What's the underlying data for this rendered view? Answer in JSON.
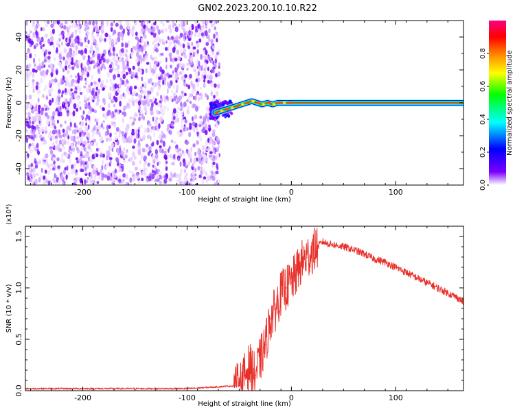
{
  "title": "GN02.2023.200.10.10.R22",
  "chart_data": [
    {
      "type": "heatmap",
      "xlabel": "Height of straight line (km)",
      "ylabel": "Frequency (Hz)",
      "xlim": [
        -255,
        165
      ],
      "ylim": [
        -50,
        50
      ],
      "x_ticks": [
        -200,
        -100,
        0,
        100
      ],
      "y_ticks": [
        -40,
        -20,
        0,
        20,
        40
      ],
      "noise_region_x": [
        -255,
        -73
      ],
      "signal_trace": {
        "x": [
          -73,
          -68,
          -63,
          -58,
          -53,
          -48,
          -43,
          -38,
          -33,
          -28,
          -23,
          -18,
          -13,
          -8,
          -3,
          0,
          50,
          100,
          165
        ],
        "y": [
          -6,
          -5,
          -4,
          -3,
          -2,
          -1,
          0,
          1,
          0,
          -1,
          0,
          -1,
          0,
          0,
          0,
          0,
          0,
          0,
          0
        ]
      },
      "colorbar": {
        "label": "Normalized spectral amplitude",
        "range": [
          0,
          1
        ],
        "ticks": [
          "0.0",
          "0.2",
          "0.4",
          "0.6",
          "0.8"
        ],
        "colors": [
          "#ffffff",
          "#7b00ff",
          "#0000ff",
          "#00ffff",
          "#00ff00",
          "#ffff00",
          "#ff7f00",
          "#ff0000",
          "#ff0080"
        ]
      }
    },
    {
      "type": "line",
      "xlabel": "Height of straight line (km)",
      "ylabel": "SNR (10 * v/v)",
      "yscale_label": "(x10⁴)",
      "xlim": [
        -255,
        165
      ],
      "ylim": [
        0,
        1.6
      ],
      "x_ticks": [
        -200,
        -100,
        0,
        100
      ],
      "y_ticks": [
        "0.0",
        "0.5",
        "1.0",
        "1.5"
      ],
      "series": [
        {
          "color": "#e8302a",
          "x": [
            -255,
            -100,
            -50,
            -45,
            -40,
            -35,
            -30,
            -25,
            -20,
            -15,
            -10,
            -5,
            0,
            5,
            10,
            15,
            20,
            25,
            30,
            35,
            40,
            50,
            60,
            70,
            80,
            90,
            100,
            110,
            120,
            130,
            140,
            150,
            160,
            165
          ],
          "y": [
            0.02,
            0.02,
            0.05,
            0.15,
            0.25,
            0.15,
            0.3,
            0.45,
            0.7,
            0.8,
            0.95,
            1.0,
            1.05,
            1.15,
            1.25,
            1.3,
            1.35,
            1.4,
            1.45,
            1.43,
            1.42,
            1.4,
            1.37,
            1.33,
            1.28,
            1.25,
            1.2,
            1.15,
            1.1,
            1.05,
            1.0,
            0.95,
            0.9,
            0.86
          ]
        }
      ]
    }
  ]
}
